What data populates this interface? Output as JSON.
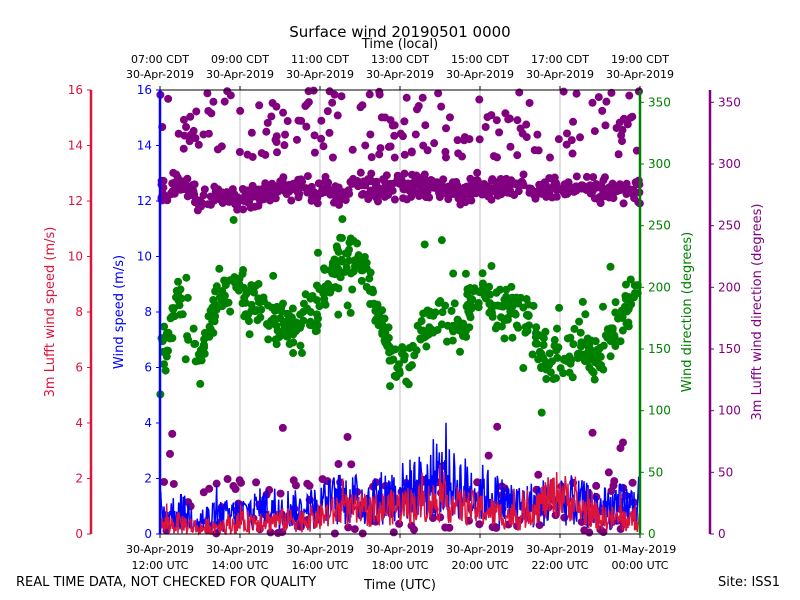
{
  "chart_data": {
    "type": "line+scatter",
    "title": "Surface wind 20190501 0000",
    "top_axis_label": "Time (local)",
    "bottom_axis_label": "Time (UTC)",
    "x_range_hours_utc": [
      12,
      24
    ],
    "bottom_ticks": [
      {
        "hour": 12,
        "line1": "30-Apr-2019",
        "line2": "12:00 UTC"
      },
      {
        "hour": 14,
        "line1": "30-Apr-2019",
        "line2": "14:00 UTC"
      },
      {
        "hour": 16,
        "line1": "30-Apr-2019",
        "line2": "16:00 UTC"
      },
      {
        "hour": 18,
        "line1": "30-Apr-2019",
        "line2": "18:00 UTC"
      },
      {
        "hour": 20,
        "line1": "30-Apr-2019",
        "line2": "20:00 UTC"
      },
      {
        "hour": 22,
        "line1": "30-Apr-2019",
        "line2": "22:00 UTC"
      },
      {
        "hour": 24,
        "line1": "01-May-2019",
        "line2": "00:00 UTC"
      }
    ],
    "top_ticks": [
      {
        "hour": 12,
        "line1": "07:00 CDT",
        "line2": "30-Apr-2019"
      },
      {
        "hour": 14,
        "line1": "09:00 CDT",
        "line2": "30-Apr-2019"
      },
      {
        "hour": 16,
        "line1": "11:00 CDT",
        "line2": "30-Apr-2019"
      },
      {
        "hour": 18,
        "line1": "13:00 CDT",
        "line2": "30-Apr-2019"
      },
      {
        "hour": 20,
        "line1": "15:00 CDT",
        "line2": "30-Apr-2019"
      },
      {
        "hour": 22,
        "line1": "17:00 CDT",
        "line2": "30-Apr-2019"
      },
      {
        "hour": 24,
        "line1": "19:00 CDT",
        "line2": "30-Apr-2019"
      }
    ],
    "axes": {
      "lufft_speed": {
        "label": "3m Lufft wind speed (m/s)",
        "range": [
          0,
          16
        ],
        "ticks": [
          0,
          2,
          4,
          6,
          8,
          10,
          12,
          14,
          16
        ],
        "color": "#dc143c"
      },
      "wind_speed": {
        "label": "Wind speed (m/s)",
        "range": [
          0,
          16
        ],
        "ticks": [
          0,
          2,
          4,
          6,
          8,
          10,
          12,
          14,
          16
        ],
        "color": "#0000ff"
      },
      "wind_dir": {
        "label": "Wind direction (degrees)",
        "range": [
          0,
          360
        ],
        "ticks": [
          0,
          50,
          100,
          150,
          200,
          250,
          300,
          350
        ],
        "color": "#008000"
      },
      "lufft_dir": {
        "label": "3m Lufft wind direction (degrees)",
        "range": [
          0,
          360
        ],
        "ticks": [
          0,
          50,
          100,
          150,
          200,
          250,
          300,
          350
        ],
        "color": "#800080"
      }
    },
    "series": [
      {
        "name": "Wind speed (m/s)",
        "kind": "line",
        "axis": "wind_speed",
        "color": "#0000ff",
        "hours": [
          12.0,
          12.5,
          13.0,
          13.5,
          14.0,
          14.5,
          15.0,
          15.5,
          16.0,
          16.5,
          17.0,
          17.5,
          18.0,
          18.5,
          19.0,
          19.5,
          20.0,
          20.5,
          21.0,
          21.5,
          22.0,
          22.5,
          23.0,
          23.5,
          24.0
        ],
        "values": [
          0.6,
          0.8,
          0.5,
          0.6,
          0.7,
          0.9,
          1.0,
          0.8,
          1.0,
          1.3,
          1.2,
          1.3,
          1.5,
          1.7,
          1.9,
          1.7,
          1.5,
          1.2,
          1.0,
          1.1,
          1.3,
          1.1,
          0.9,
          1.0,
          1.0
        ]
      },
      {
        "name": "3m Lufft wind speed (m/s)",
        "kind": "line",
        "axis": "lufft_speed",
        "color": "#dc143c",
        "hours": [
          12.0,
          12.5,
          13.0,
          13.5,
          14.0,
          14.5,
          15.0,
          15.5,
          16.0,
          16.5,
          17.0,
          17.5,
          18.0,
          18.5,
          19.0,
          19.5,
          20.0,
          20.5,
          21.0,
          21.5,
          22.0,
          22.5,
          23.0,
          23.5,
          24.0
        ],
        "values": [
          0.3,
          0.4,
          0.2,
          0.3,
          0.4,
          0.5,
          0.5,
          0.5,
          0.6,
          0.9,
          0.8,
          0.9,
          1.0,
          1.1,
          1.2,
          1.0,
          0.9,
          0.7,
          0.6,
          1.1,
          1.5,
          0.9,
          0.6,
          0.5,
          0.5
        ]
      },
      {
        "name": "Wind direction (degrees)",
        "kind": "scatter",
        "axis": "wind_dir",
        "color": "#008000",
        "hours": [
          12.0,
          12.5,
          13.0,
          13.5,
          14.0,
          14.5,
          15.0,
          15.5,
          16.0,
          16.5,
          17.0,
          17.5,
          18.0,
          18.5,
          19.0,
          19.5,
          20.0,
          20.5,
          21.0,
          21.5,
          22.0,
          22.5,
          23.0,
          23.5,
          24.0
        ],
        "values": [
          140,
          195,
          140,
          200,
          195,
          185,
          170,
          165,
          185,
          225,
          220,
          170,
          135,
          155,
          175,
          165,
          200,
          175,
          185,
          150,
          140,
          150,
          145,
          175,
          200
        ]
      },
      {
        "name": "3m Lufft wind direction (degrees)",
        "kind": "scatter",
        "axis": "lufft_dir",
        "color": "#800080",
        "hours": [
          12.0,
          12.5,
          13.0,
          13.5,
          14.0,
          14.5,
          15.0,
          15.5,
          16.0,
          16.5,
          17.0,
          17.5,
          18.0,
          18.5,
          19.0,
          19.5,
          20.0,
          20.5,
          21.0,
          21.5,
          22.0,
          22.5,
          23.0,
          23.5,
          24.0
        ],
        "values": [
          275,
          285,
          270,
          275,
          270,
          275,
          280,
          278,
          280,
          275,
          285,
          278,
          282,
          282,
          280,
          278,
          283,
          280,
          282,
          280,
          280,
          282,
          280,
          278,
          278
        ]
      }
    ]
  },
  "footer": {
    "left": "REAL TIME DATA, NOT CHECKED FOR QUALITY",
    "right": "Site: ISS1"
  }
}
